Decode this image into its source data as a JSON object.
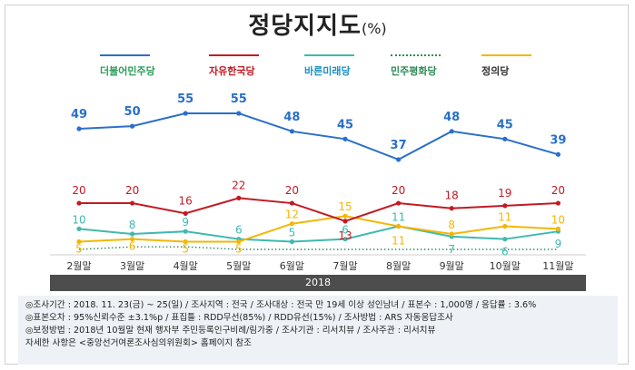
{
  "header": {
    "title": "정당지지도",
    "unit": "(%)"
  },
  "legend": {
    "items": [
      {
        "label": "더불어민주당",
        "color": "#2a6fc9",
        "style": "solid"
      },
      {
        "label": "자유한국당",
        "color": "#c21a24",
        "style": "solid"
      },
      {
        "label": "바른미래당",
        "color": "#3fb9b0",
        "style": "solid"
      },
      {
        "label": "민주평화당",
        "color": "#2e8b57",
        "style": "dotted"
      },
      {
        "label": "정의당",
        "color": "#f2b705",
        "style": "solid"
      }
    ]
  },
  "chart_data": {
    "type": "line",
    "categories": [
      "2월말",
      "3월말",
      "4월말",
      "5월말",
      "6월말",
      "7월말",
      "8월말",
      "9월말",
      "10월말",
      "11월말"
    ],
    "ylim": [
      0,
      60
    ],
    "series": [
      {
        "name": "더불어민주당",
        "color": "#2a6fc9",
        "values": [
          49,
          50,
          55,
          55,
          48,
          45,
          37,
          48,
          45,
          39
        ],
        "labels": [
          "49",
          "50",
          "55",
          "55",
          "48",
          "45",
          "37",
          "48",
          "45",
          "39"
        ]
      },
      {
        "name": "자유한국당",
        "color": "#c21a24",
        "values": [
          20,
          20,
          16,
          22,
          20,
          13,
          20,
          18,
          19,
          20
        ],
        "labels": [
          "20",
          "20",
          "16",
          "22",
          "20",
          "13",
          "20",
          "18",
          "19",
          "20"
        ]
      },
      {
        "name": "바른미래당",
        "color": "#3fb9b0",
        "values": [
          10,
          8,
          9,
          6,
          5,
          6,
          11,
          7,
          6,
          9
        ],
        "labels": [
          "10",
          "8",
          "9",
          "6",
          "5",
          "6",
          "11",
          "7",
          "6",
          "9"
        ]
      },
      {
        "name": "민주평화당",
        "color": "#2e8b57",
        "values": [
          2,
          3,
          3,
          2,
          2,
          2,
          2,
          2,
          2,
          2
        ],
        "labels": [
          "",
          "",
          "",
          "",
          "",
          "",
          "",
          "",
          "",
          ""
        ]
      },
      {
        "name": "정의당",
        "color": "#f2b705",
        "values": [
          5,
          6,
          5,
          5,
          12,
          15,
          11,
          8,
          11,
          10
        ],
        "labels": [
          "5",
          "6",
          "5",
          "5",
          "12",
          "15",
          "11",
          "8",
          "11",
          "10"
        ]
      }
    ]
  },
  "period": "2018",
  "notes": [
    "◎조사기간 : 2018. 11. 23(금) ~ 25(일) / 조사지역 : 전국 / 조사대상 : 전국 만 19세 이상 성인남녀 / 표본수 : 1,000명 / 응답률 : 3.6%",
    "◎표본오차 : 95%신뢰수준 ±3.1%p  / 표집틀 : RDD무선(85%) / RDD유선(15%) / 조사방법 : ARS 자동응답조사",
    "◎보정방법 : 2018년 10월말 현재 행자부 주민등록인구비례/림가중 / 조사기관 : 리서치뷰 / 조사주관 : 리서치뷰",
    "자세한 사항은 <중앙선거여론조사심의위원회> 홈페이지 참조"
  ]
}
